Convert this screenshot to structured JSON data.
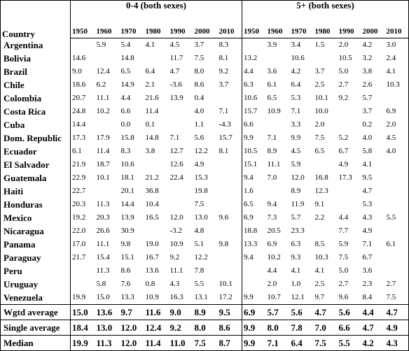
{
  "table": {
    "country_header": "Country",
    "groups": [
      "0-4 (both sexes)",
      "5+ (both sexes)"
    ],
    "years": [
      "1950",
      "1960",
      "1970",
      "1980",
      "1990",
      "2000",
      "2010"
    ],
    "rows": [
      {
        "country": "Argentina",
        "a": [
          "",
          "5.9",
          "5.4",
          "4.1",
          "4.5",
          "3.7",
          "8.3"
        ],
        "b": [
          "",
          "3.9",
          "3.4",
          "1.5",
          "2.0",
          "4.2",
          "3.0"
        ]
      },
      {
        "country": "Bolivia",
        "a": [
          "14.6",
          "",
          "14.8",
          "",
          "11.7",
          "7.5",
          "8.1"
        ],
        "b": [
          "13.2",
          "",
          "10.6",
          "",
          "10.5",
          "3.2",
          "2.4"
        ]
      },
      {
        "country": "Brazil",
        "a": [
          "9.0",
          "12.4",
          "6.5",
          "6.4",
          "4.7",
          "8.0",
          "9.2"
        ],
        "b": [
          "4.4",
          "3.6",
          "4.2",
          "3.7",
          "5.0",
          "3.8",
          "4.1"
        ]
      },
      {
        "country": "Chile",
        "a": [
          "18.6",
          "6.2",
          "14.9",
          "2.1",
          "-3.6",
          "8.6",
          "3.7"
        ],
        "b": [
          "6.3",
          "6.1",
          "6.4",
          "2.5",
          "2.7",
          "2.6",
          "10.3"
        ]
      },
      {
        "country": "Colombia",
        "a": [
          "20.7",
          "11.1",
          "4.4",
          "21.6",
          "13.9",
          "0.4",
          ""
        ],
        "b": [
          "10.6",
          "6.5",
          "5.3",
          "10.1",
          "9.2",
          "5.7",
          ""
        ]
      },
      {
        "country": "Costa Rica",
        "a": [
          "24.8",
          "10.2",
          "6.6",
          "11.4",
          "",
          "4.0",
          "7.1"
        ],
        "b": [
          "15.7",
          "10.9",
          "7.1",
          "10.0",
          "",
          "3.7",
          "6.9"
        ]
      },
      {
        "country": "Cuba",
        "a": [
          "14.4",
          "",
          "0.0",
          "0.1",
          "",
          "1.1",
          "-4.3"
        ],
        "b": [
          "6.6",
          "",
          "3.3",
          "2.0",
          "",
          "0.2",
          "2.0"
        ]
      },
      {
        "country": "Dom. Republic",
        "a": [
          "17.3",
          "17.9",
          "15.8",
          "14.8",
          "7.1",
          "5.6",
          "15.7"
        ],
        "b": [
          "9.9",
          "7.1",
          "9.9",
          "7.5",
          "5.2",
          "4.0",
          "4.5"
        ]
      },
      {
        "country": "Ecuador",
        "a": [
          "6.1",
          "11.4",
          "8.3",
          "3.8",
          "12.7",
          "12.2",
          "8.1"
        ],
        "b": [
          "10.5",
          "8.9",
          "4.5",
          "6.5",
          "6.7",
          "5.8",
          "4.0"
        ]
      },
      {
        "country": "El Salvador",
        "a": [
          "21.9",
          "18.7",
          "10.6",
          "",
          "12.6",
          "4.9",
          ""
        ],
        "b": [
          "15.1",
          "11.1",
          "5.9",
          "",
          "4.9",
          "4.1",
          ""
        ]
      },
      {
        "country": "Guatemala",
        "a": [
          "22.9",
          "10.1",
          "18.1",
          "21.2",
          "22.4",
          "15.3",
          ""
        ],
        "b": [
          "9.4",
          "7.0",
          "12.0",
          "16.8",
          "17.3",
          "9.5",
          ""
        ]
      },
      {
        "country": "Haiti",
        "a": [
          "22.7",
          "",
          "20.1",
          "36.8",
          "",
          "19.8",
          ""
        ],
        "b": [
          "1.6",
          "",
          "8.9",
          "12.3",
          "",
          "4.7",
          ""
        ]
      },
      {
        "country": "Honduras",
        "a": [
          "20.3",
          "11.3",
          "14.4",
          "10.4",
          "",
          "7.5",
          ""
        ],
        "b": [
          "6.5",
          "9.4",
          "11.9",
          "9.1",
          "",
          "5.3",
          ""
        ]
      },
      {
        "country": "Mexico",
        "a": [
          "19.2",
          "20.3",
          "13.9",
          "16.5",
          "12.0",
          "13.0",
          "9.6"
        ],
        "b": [
          "6.9",
          "7.3",
          "5.7",
          "2.2",
          "4.4",
          "4.3",
          "5.5"
        ]
      },
      {
        "country": "Nicaragua",
        "a": [
          "22.0",
          "26.6",
          "30.9",
          "",
          "-3.2",
          "4.8",
          ""
        ],
        "b": [
          "18.8",
          "20.5",
          "23.3",
          "",
          "7.7",
          "4.9",
          ""
        ]
      },
      {
        "country": "Panama",
        "a": [
          "17.0",
          "11.1",
          "9.8",
          "19.0",
          "10.9",
          "5.1",
          "9.8"
        ],
        "b": [
          "13.3",
          "6.9",
          "6.3",
          "8.5",
          "5.9",
          "7.1",
          "6.1"
        ]
      },
      {
        "country": "Paraguay",
        "a": [
          "21.7",
          "15.4",
          "15.1",
          "16.7",
          "9.2",
          "12.2",
          ""
        ],
        "b": [
          "9.4",
          "10.2",
          "9.3",
          "10.3",
          "7.5",
          "6.7",
          ""
        ]
      },
      {
        "country": "Peru",
        "a": [
          "",
          "11.3",
          "8.6",
          "13.6",
          "11.1",
          "7.8",
          ""
        ],
        "b": [
          "",
          "4.4",
          "4.1",
          "4.1",
          "5.0",
          "3.6",
          ""
        ]
      },
      {
        "country": "Uruguay",
        "a": [
          "",
          "5.8",
          "7.6",
          "0.8",
          "4.3",
          "5.5",
          "10.1"
        ],
        "b": [
          "",
          "2.0",
          "1.0",
          "2.5",
          "2.7",
          "2.3",
          "2.7"
        ]
      },
      {
        "country": "Venezuela",
        "a": [
          "19.9",
          "15.0",
          "13.3",
          "10.9",
          "16.3",
          "13.1",
          "17.2"
        ],
        "b": [
          "9.9",
          "10.7",
          "12.1",
          "9.7",
          "9.6",
          "8.4",
          "7.5"
        ]
      }
    ],
    "summary": [
      {
        "label": "Wgtd average",
        "a": [
          "15.0",
          "13.6",
          "9.7",
          "11.6",
          "9.0",
          "8.9",
          "9.5"
        ],
        "b": [
          "6.9",
          "5.7",
          "5.6",
          "4.7",
          "5.6",
          "4.4",
          "4.7"
        ]
      },
      {
        "label": "Single average",
        "a": [
          "18.4",
          "13.0",
          "12.0",
          "12.4",
          "9.2",
          "8.0",
          "8.6"
        ],
        "b": [
          "9.9",
          "8.0",
          "7.8",
          "7.0",
          "6.6",
          "4.7",
          "4.9"
        ]
      },
      {
        "label": "Median",
        "a": [
          "19.9",
          "11.3",
          "12.0",
          "11.4",
          "11.0",
          "7.5",
          "8.7"
        ],
        "b": [
          "9.9",
          "7.1",
          "6.4",
          "7.5",
          "5.5",
          "4.2",
          "4.3"
        ]
      }
    ]
  }
}
